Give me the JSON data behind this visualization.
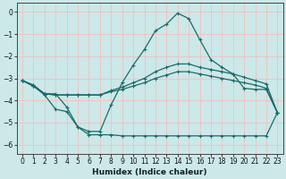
{
  "xlabel": "Humidex (Indice chaleur)",
  "background_color": "#cce8e8",
  "grid_color": "#f0c0c0",
  "line_color": "#1a6b6b",
  "xlim": [
    -0.5,
    23.5
  ],
  "ylim": [
    -6.4,
    0.4
  ],
  "xticks": [
    0,
    1,
    2,
    3,
    4,
    5,
    6,
    7,
    8,
    9,
    10,
    11,
    12,
    13,
    14,
    15,
    16,
    17,
    18,
    19,
    20,
    21,
    22,
    23
  ],
  "yticks": [
    0,
    -1,
    -2,
    -3,
    -4,
    -5,
    -6
  ],
  "series_peak_x": [
    0,
    1,
    2,
    3,
    4,
    5,
    6,
    7,
    8,
    9,
    10,
    11,
    12,
    13,
    14,
    15,
    16,
    17,
    18,
    19,
    20,
    21,
    22,
    23
  ],
  "series_peak_y": [
    -3.1,
    -3.35,
    -3.75,
    -4.4,
    -4.5,
    -5.2,
    -5.4,
    -5.4,
    -4.2,
    -3.2,
    -2.4,
    -1.7,
    -0.85,
    -0.55,
    -0.05,
    -0.3,
    -1.25,
    -2.15,
    -2.5,
    -2.8,
    -3.45,
    -3.5,
    -3.5,
    -4.55
  ],
  "series_low_x": [
    0,
    1,
    2,
    3,
    4,
    5,
    6,
    7,
    8,
    9,
    10,
    11,
    12,
    13,
    14,
    15,
    16,
    17,
    18,
    19,
    20,
    21,
    22,
    23
  ],
  "series_low_y": [
    -3.1,
    -3.3,
    -3.7,
    -3.7,
    -4.3,
    -5.2,
    -5.55,
    -5.55,
    -5.55,
    -5.6,
    -5.6,
    -5.6,
    -5.6,
    -5.6,
    -5.6,
    -5.6,
    -5.6,
    -5.6,
    -5.6,
    -5.6,
    -5.6,
    -5.6,
    -5.6,
    -4.55
  ],
  "series_upper_x": [
    0,
    1,
    2,
    3,
    4,
    5,
    6,
    7,
    8,
    9,
    10,
    11,
    12,
    13,
    14,
    15,
    16,
    17,
    18,
    19,
    20,
    21,
    22,
    23
  ],
  "series_upper_y": [
    -3.1,
    -3.35,
    -3.7,
    -3.75,
    -3.75,
    -3.75,
    -3.75,
    -3.75,
    -3.6,
    -3.5,
    -3.35,
    -3.2,
    -3.0,
    -2.85,
    -2.7,
    -2.7,
    -2.8,
    -2.9,
    -3.0,
    -3.1,
    -3.2,
    -3.3,
    -3.45,
    -4.55
  ],
  "series_mid_x": [
    0,
    1,
    2,
    3,
    4,
    5,
    6,
    7,
    8,
    9,
    10,
    11,
    12,
    13,
    14,
    15,
    16,
    17,
    18,
    19,
    20,
    21,
    22,
    23
  ],
  "series_mid_y": [
    -3.1,
    -3.35,
    -3.7,
    -3.75,
    -3.75,
    -3.75,
    -3.75,
    -3.75,
    -3.55,
    -3.4,
    -3.2,
    -3.0,
    -2.7,
    -2.5,
    -2.35,
    -2.35,
    -2.5,
    -2.6,
    -2.7,
    -2.8,
    -2.95,
    -3.1,
    -3.25,
    -4.55
  ]
}
